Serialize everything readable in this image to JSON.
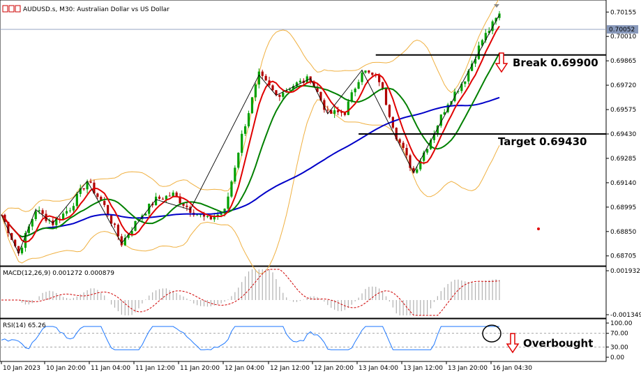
{
  "header": {
    "symbol": "AUDUSD.s",
    "timeframe": "M30",
    "description": "Australian Dollar vs US Dollar",
    "title": "AUDUSD.s, M30:  Australian Dollar vs US Dollar"
  },
  "price_panel": {
    "ticks": [
      "0.70155",
      "0.70010",
      "0.69865",
      "0.69720",
      "0.69575",
      "0.69430",
      "0.69285",
      "0.69140",
      "0.68995",
      "0.68850",
      "0.68705"
    ],
    "current_price_label": "0.70052",
    "current_price": 0.70052,
    "ylim": [
      0.6865,
      0.7021
    ],
    "levels": [
      {
        "name": "break",
        "price": 0.699,
        "label": "Break 0.69900"
      },
      {
        "name": "target",
        "price": 0.6943,
        "label": "Target 0.69430"
      }
    ]
  },
  "macd_panel": {
    "label": "MACD(12,26,9) 0.001272 0.000879",
    "ticks": [
      "0.001932",
      "-0.001349"
    ]
  },
  "rsi_panel": {
    "label": "RSI(14) 65.26",
    "ticks": [
      "100.00",
      "70.00",
      "30.00",
      "0.00"
    ],
    "annotation": "Overbought",
    "levels": [
      70,
      30
    ]
  },
  "time_axis": {
    "labels": [
      "10 Jan 2023",
      "10 Jan 20:00",
      "11 Jan 04:00",
      "11 Jan 12:00",
      "11 Jan 20:00",
      "12 Jan 04:00",
      "12 Jan 12:00",
      "12 Jan 20:00",
      "13 Jan 04:00",
      "13 Jan 12:00",
      "13 Jan 20:00",
      "16 Jan 04:30"
    ]
  },
  "colors": {
    "up_candle": "#00a000",
    "down_candle": "#b00000",
    "ma_fast": "#e00000",
    "ma_mid": "#008000",
    "ma_slow": "#0000c8",
    "bollinger": "#f0b040",
    "macd_hist": "#b0b0b0",
    "macd_signal": "#d00000",
    "rsi": "#1e78ff",
    "arrow": "#e00000"
  },
  "chart_data": {
    "type": "candlestick",
    "title": "AUDUSD.s, M30: Australian Dollar vs US Dollar",
    "ylim": [
      0.6865,
      0.7021
    ],
    "price_path": [
      [
        0,
        0.6895
      ],
      [
        5,
        0.6872
      ],
      [
        10,
        0.6898
      ],
      [
        15,
        0.689
      ],
      [
        20,
        0.6899
      ],
      [
        25,
        0.6915
      ],
      [
        30,
        0.69
      ],
      [
        35,
        0.6878
      ],
      [
        40,
        0.6893
      ],
      [
        45,
        0.6904
      ],
      [
        50,
        0.6907
      ],
      [
        55,
        0.6898
      ],
      [
        60,
        0.6892
      ],
      [
        65,
        0.6897
      ],
      [
        70,
        0.6942
      ],
      [
        75,
        0.6978
      ],
      [
        80,
        0.6966
      ],
      [
        85,
        0.6972
      ],
      [
        90,
        0.6976
      ],
      [
        95,
        0.6955
      ],
      [
        100,
        0.6956
      ],
      [
        105,
        0.6981
      ],
      [
        110,
        0.6975
      ],
      [
        115,
        0.6942
      ],
      [
        120,
        0.692
      ],
      [
        125,
        0.694
      ],
      [
        130,
        0.6962
      ],
      [
        135,
        0.6976
      ],
      [
        140,
        0.6999
      ],
      [
        145,
        0.7014
      ]
    ]
  }
}
